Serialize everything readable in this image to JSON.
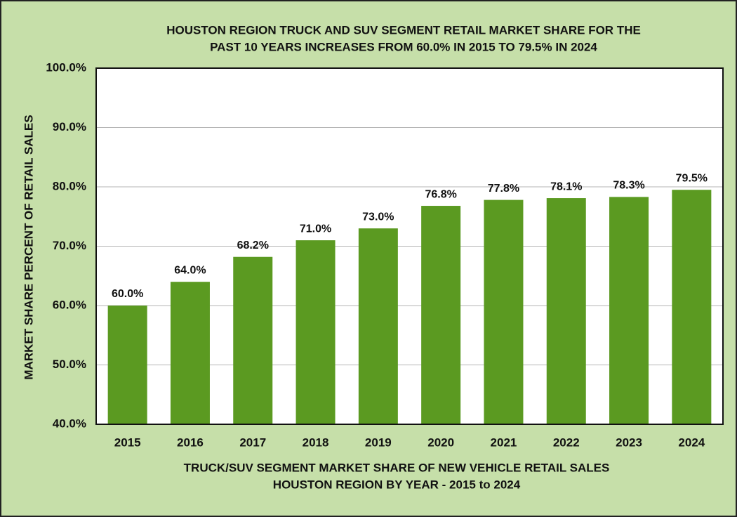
{
  "chart_data": {
    "type": "bar",
    "title": [
      "HOUSTON REGION TRUCK AND SUV SEGMENT RETAIL MARKET SHARE FOR THE",
      "PAST 10 YEARS INCREASES FROM 60.0% IN 2015 TO 79.5% IN 2024"
    ],
    "x_label": [
      "TRUCK/SUV SEGMENT MARKET SHARE OF NEW VEHICLE RETAIL SALES",
      "HOUSTON REGION BY YEAR - 2015 to 2024"
    ],
    "y_label": "MARKET SHARE PERCENT OF RETAIL SALES",
    "categories": [
      "2015",
      "2016",
      "2017",
      "2018",
      "2019",
      "2020",
      "2021",
      "2022",
      "2023",
      "2024"
    ],
    "values": [
      60.0,
      64.0,
      68.2,
      71.0,
      73.0,
      76.8,
      77.8,
      78.1,
      78.3,
      79.5
    ],
    "value_labels": [
      "60.0%",
      "64.0%",
      "68.2%",
      "71.0%",
      "73.0%",
      "76.8%",
      "77.8%",
      "78.1%",
      "78.3%",
      "79.5%"
    ],
    "color": "#5b9a21",
    "ylim": [
      40,
      100
    ],
    "yticks": [
      {
        "value": 40,
        "label": "40.0%"
      },
      {
        "value": 50,
        "label": "50.0%"
      },
      {
        "value": 60,
        "label": "60.0%"
      },
      {
        "value": 70,
        "label": "70.0%"
      },
      {
        "value": 80,
        "label": "80.0%"
      },
      {
        "value": 90,
        "label": "90.0%"
      },
      {
        "value": 100,
        "label": "100.0%"
      }
    ],
    "grid": true
  }
}
